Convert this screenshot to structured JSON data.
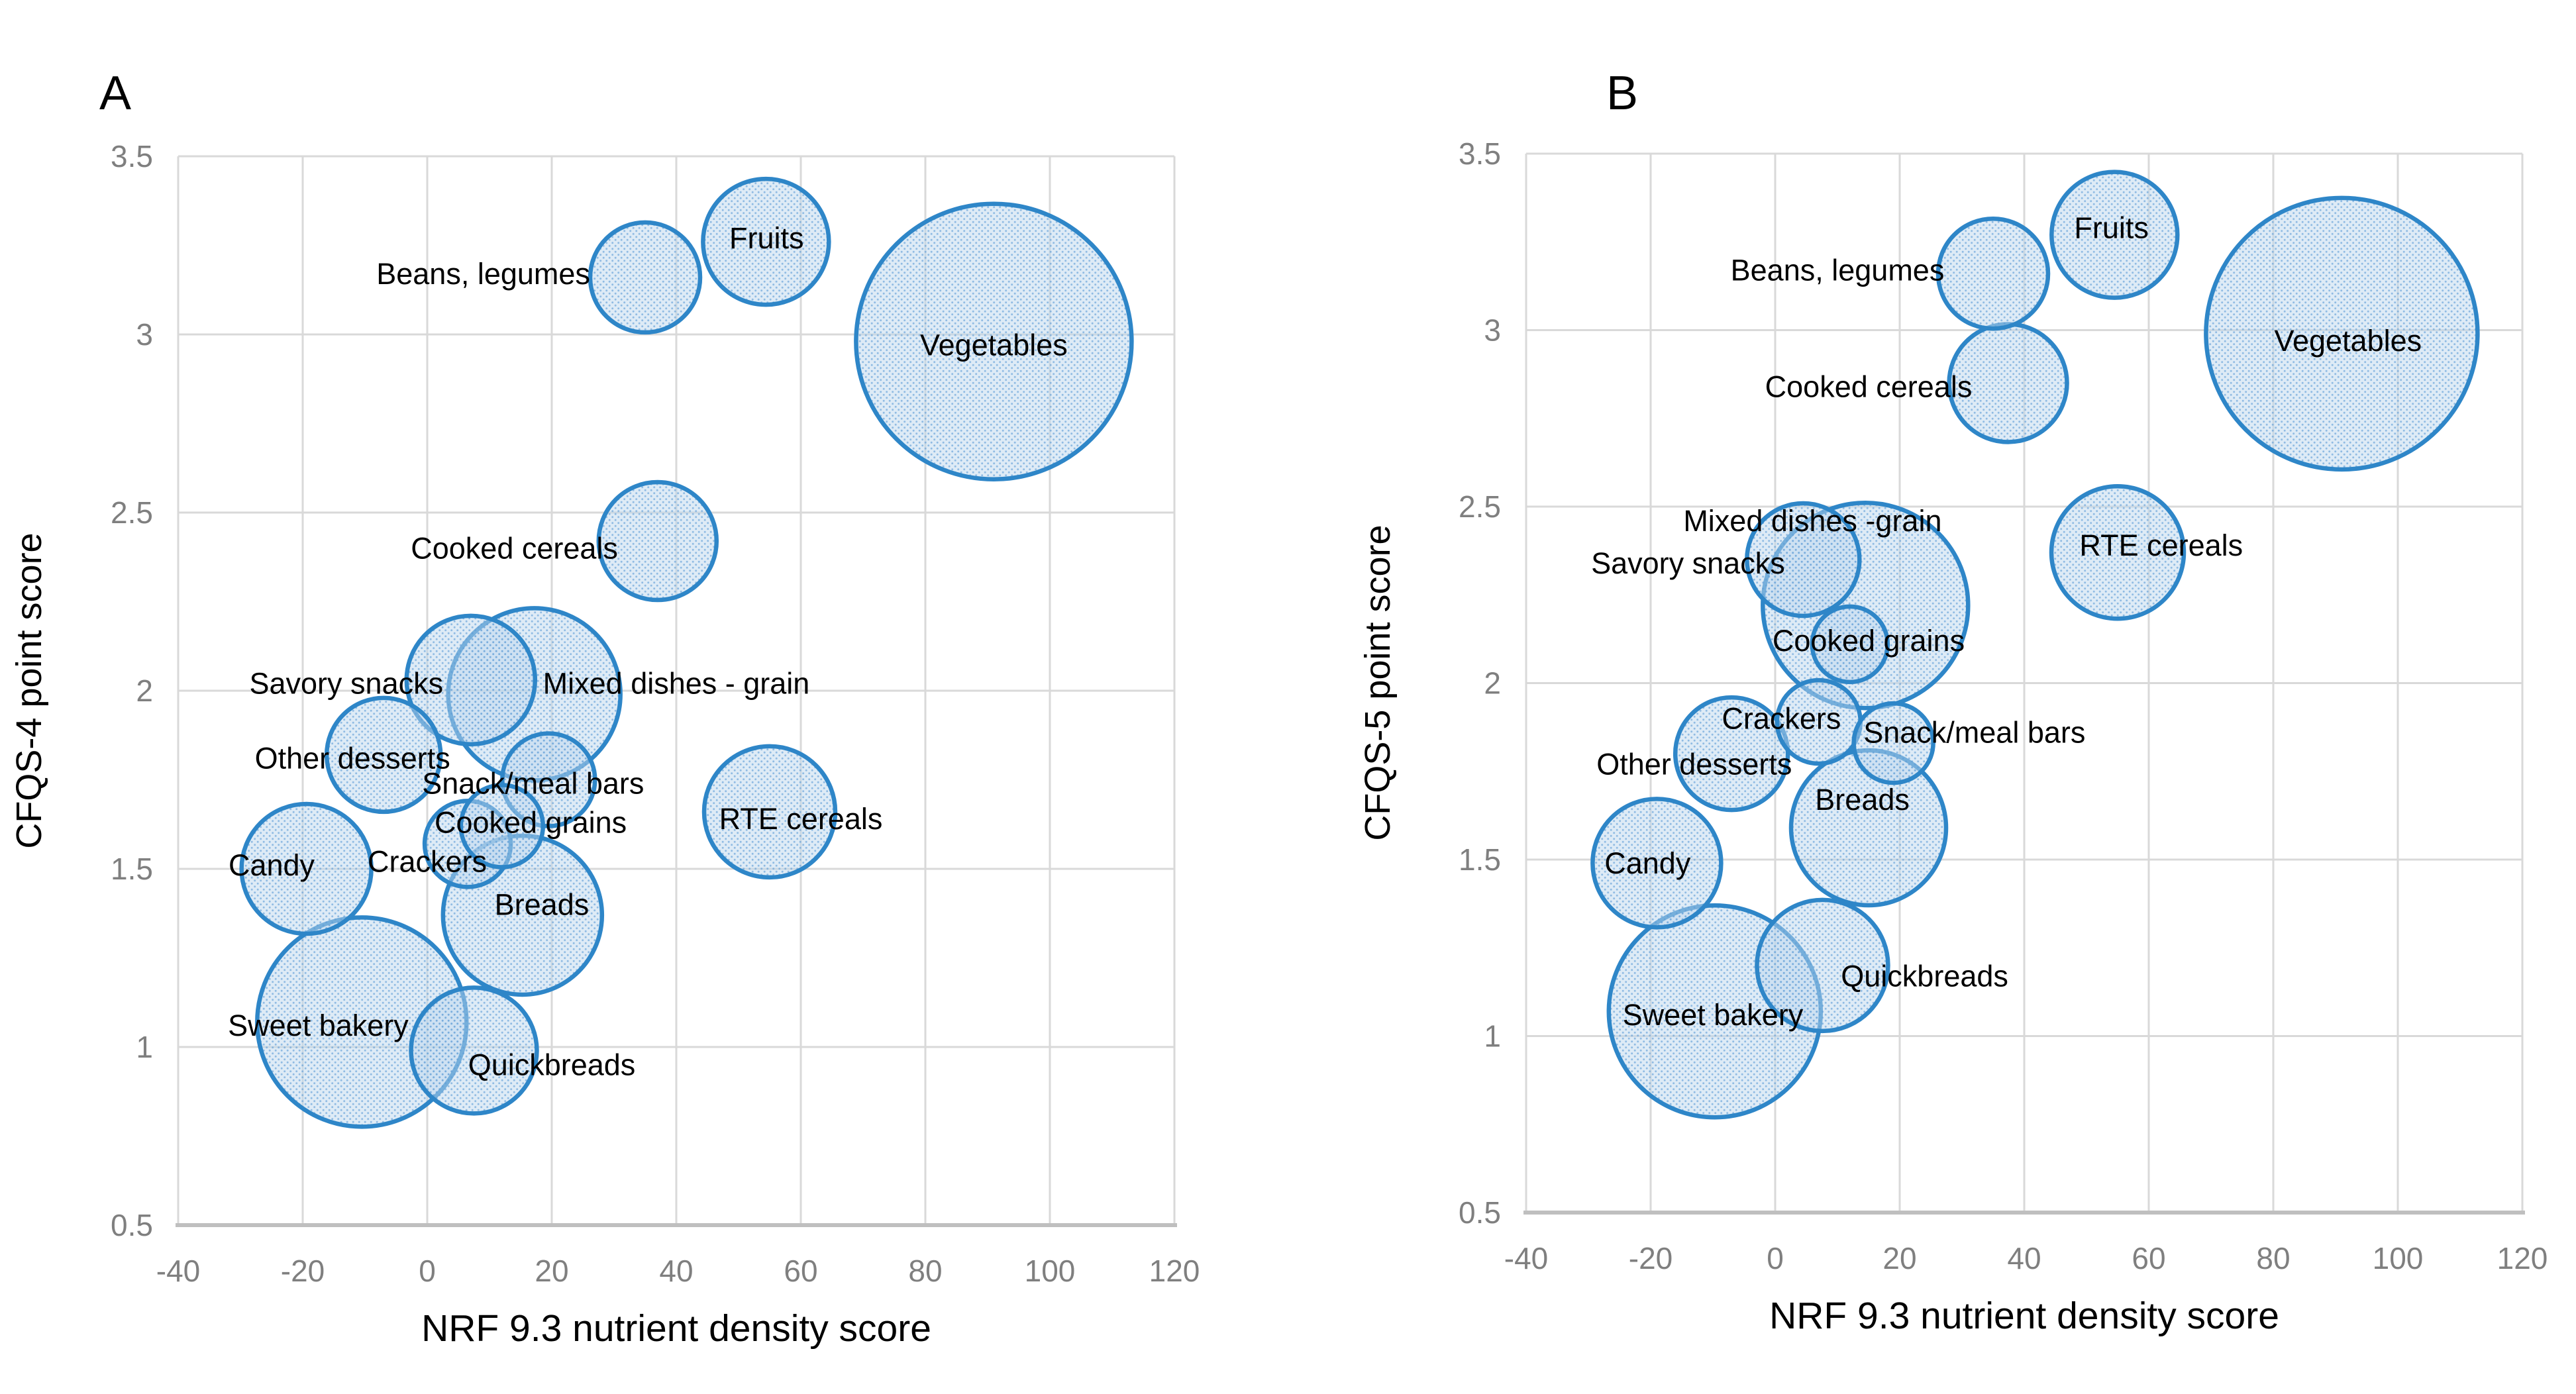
{
  "figure": {
    "background": "#FFFFFF",
    "bubble_fill": "#AECDE8",
    "bubble_fill_opacity": 0.55,
    "bubble_stroke": "#2E86C8",
    "grid_color": "#D9D9D9",
    "axis_line_color": "#BFBFBF",
    "tick_label_color": "#7F7F7F",
    "data_label_color": "#000000",
    "panel_letters": [
      "A",
      "B"
    ]
  },
  "chart_data": [
    {
      "type": "scatter",
      "subtype": "bubble",
      "panel_letter": "A",
      "title": "",
      "xlabel": "NRF 9.3 nutrient density score",
      "ylabel": "CFQS-4 point score",
      "xlim": [
        -40,
        120
      ],
      "ylim": [
        0.5,
        3.5
      ],
      "xticks": [
        "-40",
        "-20",
        "0",
        "20",
        "40",
        "60",
        "80",
        "100",
        "120"
      ],
      "xtick_values": [
        -40,
        -20,
        0,
        20,
        40,
        60,
        80,
        100,
        120
      ],
      "yticks": [
        "0.5",
        "1",
        "1.5",
        "2",
        "2.5",
        "3",
        "3.5"
      ],
      "ytick_values": [
        0.5,
        1,
        1.5,
        2,
        2.5,
        3,
        3.5
      ],
      "grid": true,
      "legend": "none",
      "series": [
        {
          "name": "Vegetables",
          "x": 91,
          "y": 2.98,
          "r": 208,
          "label_x": 91,
          "label_y": 2.97
        },
        {
          "name": "Sweet bakery",
          "x": -10.5,
          "y": 1.07,
          "r": 158,
          "label_x": -17.5,
          "label_y": 1.06
        },
        {
          "name": "Mixed dishes - grain",
          "x": 17.2,
          "y": 1.99,
          "r": 130,
          "label_x": 40,
          "label_y": 2.02
        },
        {
          "name": "Breads",
          "x": 15.3,
          "y": 1.37,
          "r": 120,
          "label_x": 18.4,
          "label_y": 1.4
        },
        {
          "name": "RTE cereals",
          "x": 55,
          "y": 1.66,
          "r": 99,
          "label_x": 60,
          "label_y": 1.64
        },
        {
          "name": "Candy",
          "x": -19.4,
          "y": 1.5,
          "r": 98,
          "label_x": -25,
          "label_y": 1.51
        },
        {
          "name": "Savory snacks",
          "x": 7,
          "y": 2.03,
          "r": 97,
          "label_x": -13,
          "label_y": 2.02
        },
        {
          "name": "Fruits",
          "x": 54.4,
          "y": 3.26,
          "r": 95,
          "label_x": 54.5,
          "label_y": 3.27
        },
        {
          "name": "Quickbreads",
          "x": 7.5,
          "y": 0.99,
          "r": 95,
          "label_x": 20,
          "label_y": 0.95
        },
        {
          "name": "Cooked cereals",
          "x": 37,
          "y": 2.42,
          "r": 89,
          "label_x": 14,
          "label_y": 2.4
        },
        {
          "name": "Other desserts",
          "x": -7,
          "y": 1.82,
          "r": 86,
          "label_x": -12,
          "label_y": 1.81
        },
        {
          "name": "Beans, legumes",
          "x": 35,
          "y": 3.16,
          "r": 83,
          "label_x": 9,
          "label_y": 3.17
        },
        {
          "name": "Snack/meal bars",
          "x": 19.5,
          "y": 1.75,
          "r": 70,
          "label_x": 17,
          "label_y": 1.74
        },
        {
          "name": "Crackers",
          "x": 6.5,
          "y": 1.57,
          "r": 65,
          "label_x": 0,
          "label_y": 1.52
        },
        {
          "name": "Cooked grains",
          "x": 12,
          "y": 1.62,
          "r": 62,
          "label_x": 16.6,
          "label_y": 1.63
        }
      ]
    },
    {
      "type": "scatter",
      "subtype": "bubble",
      "panel_letter": "B",
      "title": "",
      "xlabel": "NRF 9.3 nutrient density score",
      "ylabel": "CFQS-5 point score",
      "xlim": [
        -40,
        120
      ],
      "ylim": [
        0.5,
        3.5
      ],
      "xticks": [
        "-40",
        "-20",
        "0",
        "20",
        "40",
        "60",
        "80",
        "100",
        "120"
      ],
      "xtick_values": [
        -40,
        -20,
        0,
        20,
        40,
        60,
        80,
        100,
        120
      ],
      "yticks": [
        "0.5",
        "1",
        "1.5",
        "2",
        "2.5",
        "3",
        "3.5"
      ],
      "ytick_values": [
        0.5,
        1,
        1.5,
        2,
        2.5,
        3,
        3.5
      ],
      "grid": true,
      "legend": "none",
      "series": [
        {
          "name": "Vegetables",
          "x": 91,
          "y": 2.99,
          "r": 205,
          "label_x": 92,
          "label_y": 2.97
        },
        {
          "name": "Sweet bakery",
          "x": -9.7,
          "y": 1.07,
          "r": 160,
          "label_x": -10,
          "label_y": 1.06
        },
        {
          "name": "Mixed dishes -grain",
          "x": 14.5,
          "y": 2.22,
          "r": 155,
          "label_x": 6,
          "label_y": 2.46
        },
        {
          "name": "Breads",
          "x": 15,
          "y": 1.59,
          "r": 117,
          "label_x": 14,
          "label_y": 1.67
        },
        {
          "name": "RTE cereals",
          "x": 55,
          "y": 2.37,
          "r": 100,
          "label_x": 62,
          "label_y": 2.39
        },
        {
          "name": "Quickbreads",
          "x": 7.6,
          "y": 1.2,
          "r": 99,
          "label_x": 24,
          "label_y": 1.17
        },
        {
          "name": "Candy",
          "x": -19,
          "y": 1.49,
          "r": 97,
          "label_x": -20.5,
          "label_y": 1.49
        },
        {
          "name": "Fruits",
          "x": 54.5,
          "y": 3.27,
          "r": 95,
          "label_x": 54,
          "label_y": 3.29
        },
        {
          "name": "Cooked cereals",
          "x": 37.4,
          "y": 2.85,
          "r": 89,
          "label_x": 15,
          "label_y": 2.84
        },
        {
          "name": "Savory snacks",
          "x": 4.5,
          "y": 2.35,
          "r": 85,
          "label_x": -14,
          "label_y": 2.34
        },
        {
          "name": "Other desserts",
          "x": -7,
          "y": 1.8,
          "r": 85,
          "label_x": -13,
          "label_y": 1.77
        },
        {
          "name": "Beans, legumes",
          "x": 35,
          "y": 3.16,
          "r": 83,
          "label_x": 10,
          "label_y": 3.17
        },
        {
          "name": "Crackers",
          "x": 7,
          "y": 1.89,
          "r": 63,
          "label_x": 1,
          "label_y": 1.9
        },
        {
          "name": "Snack/meal bars",
          "x": 19,
          "y": 1.83,
          "r": 60,
          "label_x": 32,
          "label_y": 1.86
        },
        {
          "name": "Cooked grains",
          "x": 12,
          "y": 2.11,
          "r": 57,
          "label_x": 15,
          "label_y": 2.12
        }
      ]
    }
  ]
}
